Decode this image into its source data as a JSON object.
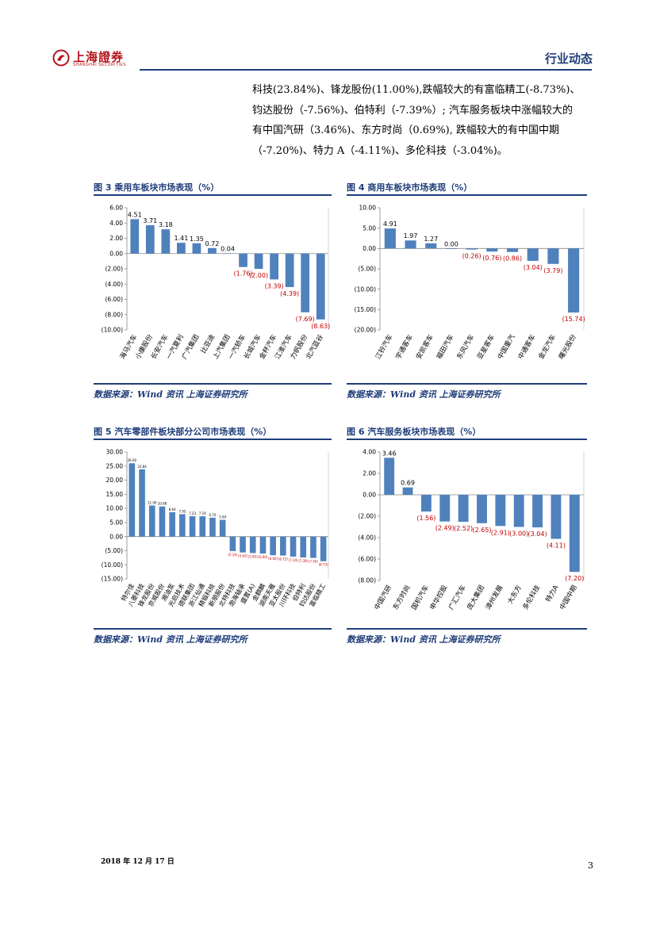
{
  "header": {
    "logo_cn": "上海證券",
    "logo_en": "SHANGHAI SECURITIES",
    "section_title": "行业动态"
  },
  "body_text": [
    "科技(23.84%)、锋龙股份(11.00%),跌幅较大的有富临精工(-8.73%)、",
    "钧达股份（-7.56%)、伯特利（-7.39%）; 汽车服务板块中涨幅较大的",
    "有中国汽研（3.46%)、东方时尚（0.69%), 跌幅较大的有中国中期",
    "（-7.20%)、特力 A（-4.11%)、多伦科技（-3.04%)。"
  ],
  "figures": [
    {
      "title": "图 3 乘用车板块市场表现（%）",
      "source": "数据来源：Wind 资讯 上海证券研究所"
    },
    {
      "title": "图 4 商用车板块市场表现（%）",
      "source": "数据来源：Wind 资讯 上海证券研究所"
    },
    {
      "title": "图 5 汽车零部件板块部分公司市场表现（%）",
      "source": "数据来源：Wind 资讯 上海证券研究所"
    },
    {
      "title": "图 6 汽车服务板块市场表现（%）",
      "source": "数据来源：Wind 资讯 上海证券研究所"
    }
  ],
  "footer": {
    "date": "2018 年 12 月 17 日",
    "page_number": "3"
  },
  "colors": {
    "bar": "#4f81bd",
    "negative_label": "#c00000",
    "accent": "#1f3d7a"
  },
  "chart_data": [
    {
      "type": "bar",
      "title": "乘用车板块市场表现（%）",
      "categories": [
        "海马汽车",
        "小康股份",
        "长安汽车",
        "一汽夏利",
        "广汽集团",
        "比亚迪",
        "上汽集团",
        "一汽轿车",
        "长城汽车",
        "金杯汽车",
        "江淮汽车",
        "力帆股份",
        "北汽蓝谷"
      ],
      "values": [
        4.51,
        3.71,
        3.18,
        1.41,
        1.35,
        0.72,
        0.04,
        -1.76,
        -2.0,
        -3.39,
        -4.39,
        -7.69,
        -8.63
      ],
      "data_labels": [
        "4.51",
        "3.71",
        "3.18",
        "1.41",
        "1.35",
        "0.72",
        "0.04",
        "(1.76)",
        "(2.00)",
        "(3.39)",
        "(4.39)",
        "(7.69)",
        "(8.63)"
      ],
      "ylim": [
        -10,
        6
      ],
      "yticks": [
        6,
        4,
        2,
        0,
        -2,
        -4,
        -6,
        -8,
        -10
      ],
      "ytick_labels": [
        "6.00",
        "4.00",
        "2.00",
        "0.00",
        "(2.00)",
        "(4.00)",
        "(6.00)",
        "(8.00)",
        "(10.00)"
      ],
      "xlabel": "",
      "ylabel": ""
    },
    {
      "type": "bar",
      "title": "商用车板块市场表现（%）",
      "categories": [
        "江铃汽车",
        "宇通客车",
        "安凯客车",
        "福田汽车",
        "东风汽车",
        "亚星客车",
        "中国重汽",
        "中通客车",
        "金龙汽车",
        "曙光股份"
      ],
      "values": [
        4.91,
        1.97,
        1.27,
        0.0,
        -0.26,
        -0.76,
        -0.86,
        -3.04,
        -3.79,
        -15.74
      ],
      "data_labels": [
        "4.91",
        "1.97",
        "1.27",
        "0.00",
        "(0.26)",
        "(0.76)",
        "(0.86)",
        "(3.04)",
        "(3.79)",
        "(15.74)"
      ],
      "ylim": [
        -20,
        10
      ],
      "yticks": [
        10,
        5,
        0,
        -5,
        -10,
        -15,
        -20
      ],
      "ytick_labels": [
        "10.00",
        "5.00",
        "0.00",
        "(5.00)",
        "(10.00)",
        "(15.00)",
        "(20.00)"
      ],
      "xlabel": "",
      "ylabel": ""
    },
    {
      "type": "bar",
      "title": "汽车零部件板块部分公司市场表现（%）",
      "categories": [
        "特尔佳",
        "八菱科技",
        "锋龙股份",
        "京威股份",
        "湘油泵",
        "光启技术",
        "德联集团",
        "浙江仙通",
        "精锻科技",
        "新朋股份",
        "北特科技",
        "渤海轴承",
        "盛置(A)",
        "金麒麟",
        "湖南天雁",
        "亚太股份",
        "川环科技",
        "伯特利",
        "钧达股份",
        "富临精工"
      ],
      "values": [
        26.0,
        23.84,
        11.0,
        10.68,
        8.64,
        7.95,
        7.23,
        7.19,
        6.7,
        5.94,
        -5.14,
        -5.62,
        -5.83,
        -6.0,
        -6.6,
        -6.72,
        -7.1,
        -7.39,
        -7.56,
        -8.73
      ],
      "data_labels": [
        "26.00",
        "23.84",
        "11.00",
        "10.68",
        "8.64",
        "7.95",
        "7.23",
        "7.19",
        "6.70",
        "5.94",
        "(5.14)",
        "(5.62)",
        "(5.83)",
        "(6.00)",
        "(6.60)",
        "(6.72)",
        "(7.10)",
        "(7.39)",
        "(7.56)",
        "(8.73)"
      ],
      "ylim": [
        -15,
        30
      ],
      "yticks": [
        30,
        25,
        20,
        15,
        10,
        5,
        0,
        -5,
        -10,
        -15
      ],
      "ytick_labels": [
        "30.00",
        "25.00",
        "20.00",
        "15.00",
        "10.00",
        "5.00",
        "0.00",
        "(5.00)",
        "(10.00)",
        "(15.00)"
      ],
      "xlabel": "",
      "ylabel": ""
    },
    {
      "type": "bar",
      "title": "汽车服务板块市场表现（%）",
      "categories": [
        "中国汽研",
        "东方时尚",
        "国机汽车",
        "申华控股",
        "广汇汽车",
        "庞大集团",
        "漳州发展",
        "大东方",
        "多伦科技",
        "特力A",
        "中国中期"
      ],
      "values": [
        3.46,
        0.69,
        -1.56,
        -2.49,
        -2.52,
        -2.65,
        -2.91,
        -3.0,
        -3.04,
        -4.11,
        -7.2
      ],
      "data_labels": [
        "3.46",
        "0.69",
        "(1.56)",
        "(2.49)",
        "(2.52)",
        "(2.65)",
        "(2.91)",
        "(3.00)",
        "(3.04)",
        "(4.11)",
        "(7.20)"
      ],
      "ylim": [
        -8,
        4
      ],
      "yticks": [
        4,
        2,
        0,
        -2,
        -4,
        -6,
        -8
      ],
      "ytick_labels": [
        "4.00",
        "2.00",
        "0.00",
        "(2.00)",
        "(4.00)",
        "(6.00)",
        "(8.00)"
      ],
      "xlabel": "",
      "ylabel": ""
    }
  ]
}
